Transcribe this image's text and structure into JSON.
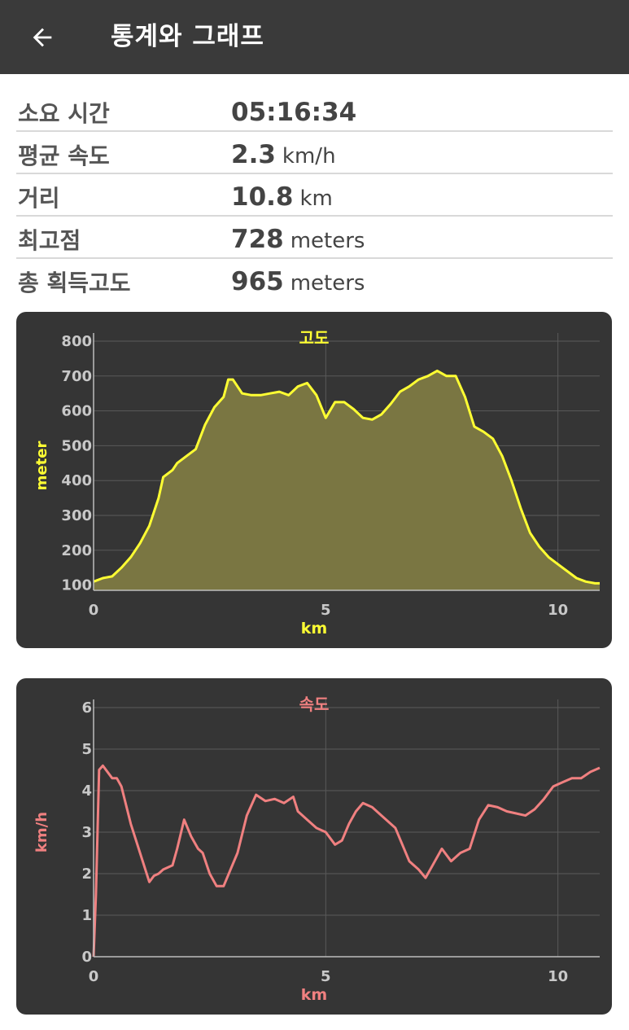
{
  "appbar": {
    "title": "통계와 그래프",
    "back_icon": "arrow-left-icon"
  },
  "stats": [
    {
      "label": "소요 시간",
      "value": "05:16:34",
      "unit": ""
    },
    {
      "label": "평균 속도",
      "value": "2.3",
      "unit": "km/h"
    },
    {
      "label": "거리",
      "value": "10.8",
      "unit": "km"
    },
    {
      "label": "최고점",
      "value": "728",
      "unit": "meters"
    },
    {
      "label": "총 획득고도",
      "value": "965",
      "unit": "meters"
    }
  ],
  "chart_data": [
    {
      "type": "area",
      "title": "고도",
      "xlabel": "km",
      "ylabel": "meter",
      "color": "#ffff33",
      "fill": "#7a7642",
      "xlim": [
        0,
        10.9
      ],
      "ylim": [
        85,
        800
      ],
      "xticks": [
        0,
        5,
        10
      ],
      "yticks": [
        800,
        700,
        600,
        500,
        400,
        300,
        200,
        100
      ],
      "grid": true,
      "x": [
        0,
        0.2,
        0.4,
        0.6,
        0.8,
        1.0,
        1.2,
        1.4,
        1.5,
        1.7,
        1.8,
        2.0,
        2.2,
        2.4,
        2.6,
        2.8,
        2.9,
        3.0,
        3.2,
        3.4,
        3.6,
        3.8,
        4.0,
        4.2,
        4.4,
        4.6,
        4.8,
        5.0,
        5.2,
        5.4,
        5.6,
        5.8,
        6.0,
        6.2,
        6.4,
        6.6,
        6.8,
        7.0,
        7.2,
        7.4,
        7.6,
        7.8,
        8.0,
        8.2,
        8.4,
        8.6,
        8.8,
        9.0,
        9.2,
        9.4,
        9.6,
        9.8,
        10.0,
        10.2,
        10.4,
        10.6,
        10.8,
        10.9
      ],
      "y": [
        110,
        120,
        125,
        150,
        180,
        220,
        270,
        350,
        410,
        430,
        450,
        470,
        490,
        560,
        610,
        640,
        690,
        690,
        650,
        645,
        645,
        650,
        655,
        645,
        670,
        680,
        645,
        580,
        625,
        625,
        605,
        580,
        575,
        590,
        620,
        655,
        670,
        690,
        700,
        715,
        700,
        700,
        640,
        555,
        540,
        520,
        470,
        400,
        320,
        250,
        210,
        180,
        160,
        140,
        120,
        110,
        105,
        105
      ]
    },
    {
      "type": "line",
      "title": "속도",
      "xlabel": "km",
      "ylabel": "km/h",
      "color": "#f08080",
      "xlim": [
        0,
        10.9
      ],
      "ylim": [
        0,
        6
      ],
      "xticks": [
        0,
        5,
        10
      ],
      "yticks": [
        6,
        5,
        4,
        3,
        2,
        1,
        0
      ],
      "grid": true,
      "x": [
        0,
        0.05,
        0.12,
        0.2,
        0.4,
        0.5,
        0.6,
        0.8,
        1.0,
        1.2,
        1.3,
        1.4,
        1.5,
        1.7,
        1.8,
        1.95,
        2.1,
        2.25,
        2.35,
        2.5,
        2.65,
        2.8,
        2.95,
        3.1,
        3.3,
        3.5,
        3.7,
        3.9,
        4.1,
        4.3,
        4.4,
        4.6,
        4.8,
        5.0,
        5.2,
        5.35,
        5.5,
        5.65,
        5.8,
        6.0,
        6.2,
        6.5,
        6.8,
        7.0,
        7.15,
        7.3,
        7.5,
        7.7,
        7.9,
        8.1,
        8.3,
        8.5,
        8.7,
        8.9,
        9.1,
        9.3,
        9.5,
        9.7,
        9.9,
        10.1,
        10.3,
        10.5,
        10.7,
        10.9
      ],
      "y": [
        0,
        1.5,
        4.5,
        4.6,
        4.3,
        4.3,
        4.1,
        3.2,
        2.5,
        1.8,
        1.95,
        2.0,
        2.1,
        2.2,
        2.6,
        3.3,
        2.9,
        2.6,
        2.5,
        2.0,
        1.7,
        1.7,
        2.1,
        2.5,
        3.4,
        3.9,
        3.75,
        3.8,
        3.7,
        3.85,
        3.5,
        3.3,
        3.1,
        3.0,
        2.7,
        2.8,
        3.2,
        3.5,
        3.7,
        3.6,
        3.4,
        3.1,
        2.3,
        2.1,
        1.9,
        2.2,
        2.6,
        2.3,
        2.5,
        2.6,
        3.3,
        3.65,
        3.6,
        3.5,
        3.45,
        3.4,
        3.55,
        3.8,
        4.1,
        4.2,
        4.3,
        4.3,
        4.45,
        4.55
      ]
    }
  ]
}
